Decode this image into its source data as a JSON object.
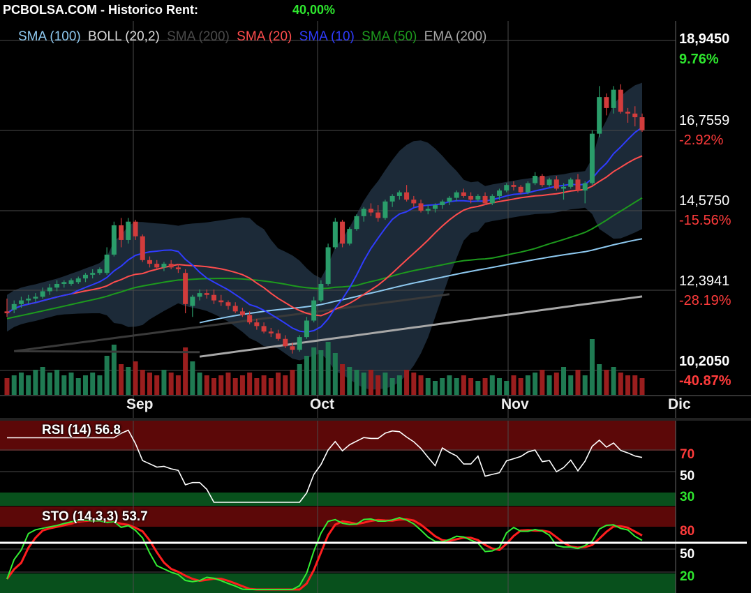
{
  "header": {
    "title": "PCBOLSA.COM - Historico  Rent:",
    "rent": "40,00%"
  },
  "legend": [
    {
      "label": "SMA (100)",
      "color": "#8ec9f0"
    },
    {
      "label": "BOLL (20,2)",
      "color": "#dcdcdc"
    },
    {
      "label": "SMA (200)",
      "color": "#4a4a4a"
    },
    {
      "label": "SMA (20)",
      "color": "#ff4d4d"
    },
    {
      "label": "SMA (10)",
      "color": "#2f3cff"
    },
    {
      "label": "SMA (50)",
      "color": "#1d9a1d"
    },
    {
      "label": "EMA (200)",
      "color": "#a8a8a8"
    }
  ],
  "price_axis": [
    {
      "price": "18,9450",
      "pct": "9.76%",
      "pct_color": "#2ee62e"
    },
    {
      "price": "16,7559",
      "pct": "-2.92%",
      "pct_color": "#ff3b3b"
    },
    {
      "price": "14,5750",
      "pct": "-15.56%",
      "pct_color": "#ff3b3b"
    },
    {
      "price": "12,3941",
      "pct": "-28.19%",
      "pct_color": "#ff3b3b"
    },
    {
      "price": "10,2050",
      "pct": "-40.87%",
      "pct_color": "#ff3b3b"
    }
  ],
  "months": [
    "Sep",
    "Oct",
    "Nov",
    "Dic"
  ],
  "rsi": {
    "title": "RSI (14) 56.8",
    "levels": [
      "70",
      "50",
      "30"
    ]
  },
  "sto": {
    "title": "STO (14,3,3) 53.7",
    "levels": [
      "80",
      "50",
      "20"
    ]
  },
  "colors": {
    "up": "#2a9d6a",
    "down": "#d23c3c",
    "boll_fill": "#1c2a38",
    "rsi_over": "#5c0808",
    "rsi_under": "#08501c",
    "grid": "#4a4a4a"
  },
  "chart_data": {
    "type": "candlestick",
    "ylim": [
      10.205,
      18.945
    ],
    "candles": [
      [
        11.55,
        11.9,
        11.4,
        11.5
      ],
      [
        11.6,
        11.85,
        11.5,
        11.75
      ],
      [
        11.75,
        11.95,
        11.65,
        11.85
      ],
      [
        11.85,
        12.0,
        11.75,
        11.9
      ],
      [
        11.9,
        12.05,
        11.8,
        11.95
      ],
      [
        11.95,
        12.2,
        11.9,
        12.1
      ],
      [
        12.1,
        12.3,
        12.0,
        12.2
      ],
      [
        12.2,
        12.4,
        12.1,
        12.3
      ],
      [
        12.3,
        12.4,
        12.2,
        12.35
      ],
      [
        12.3,
        12.45,
        12.25,
        12.4
      ],
      [
        12.35,
        12.5,
        12.3,
        12.45
      ],
      [
        12.45,
        12.6,
        12.35,
        12.55
      ],
      [
        12.55,
        12.7,
        12.45,
        12.6
      ],
      [
        12.6,
        12.75,
        12.55,
        12.7
      ],
      [
        12.6,
        13.3,
        12.55,
        13.1
      ],
      [
        13.1,
        14.0,
        13.05,
        13.9
      ],
      [
        13.9,
        14.1,
        13.3,
        13.5
      ],
      [
        13.5,
        14.1,
        13.4,
        14.0
      ],
      [
        14.0,
        14.05,
        13.5,
        13.6
      ],
      [
        13.6,
        13.65,
        12.9,
        12.95
      ],
      [
        12.95,
        13.05,
        12.75,
        12.85
      ],
      [
        12.85,
        12.95,
        12.7,
        12.75
      ],
      [
        12.75,
        12.9,
        12.65,
        12.85
      ],
      [
        12.85,
        12.95,
        12.7,
        12.75
      ],
      [
        12.75,
        12.85,
        12.6,
        12.7
      ],
      [
        12.6,
        12.7,
        11.5,
        11.75
      ],
      [
        11.7,
        12.0,
        11.4,
        11.95
      ],
      [
        11.95,
        12.15,
        11.85,
        12.05
      ],
      [
        12.05,
        12.15,
        11.9,
        12.0
      ],
      [
        12.0,
        12.15,
        11.75,
        11.85
      ],
      [
        11.85,
        12.0,
        11.7,
        11.8
      ],
      [
        11.8,
        11.85,
        11.6,
        11.7
      ],
      [
        11.7,
        11.8,
        11.5,
        11.55
      ],
      [
        11.55,
        11.65,
        11.4,
        11.45
      ],
      [
        11.45,
        11.55,
        11.2,
        11.25
      ],
      [
        11.25,
        11.35,
        11.05,
        11.15
      ],
      [
        11.15,
        11.25,
        10.95,
        11.0
      ],
      [
        11.0,
        11.1,
        10.85,
        10.95
      ],
      [
        10.95,
        11.05,
        10.75,
        10.8
      ],
      [
        10.8,
        10.9,
        10.55,
        10.6
      ],
      [
        10.6,
        10.7,
        10.4,
        10.5
      ],
      [
        10.5,
        10.9,
        10.45,
        10.85
      ],
      [
        10.85,
        11.4,
        10.8,
        11.3
      ],
      [
        11.3,
        11.95,
        11.25,
        11.85
      ],
      [
        11.85,
        12.4,
        11.8,
        12.3
      ],
      [
        12.3,
        13.4,
        12.25,
        13.3
      ],
      [
        13.3,
        14.1,
        13.25,
        14.0
      ],
      [
        14.0,
        14.05,
        13.3,
        13.4
      ],
      [
        13.4,
        13.85,
        13.35,
        13.8
      ],
      [
        13.8,
        14.2,
        13.75,
        14.15
      ],
      [
        14.15,
        14.4,
        14.0,
        14.35
      ],
      [
        14.35,
        14.5,
        14.15,
        14.25
      ],
      [
        14.25,
        14.45,
        14.0,
        14.1
      ],
      [
        14.1,
        14.6,
        14.05,
        14.55
      ],
      [
        14.55,
        14.75,
        14.4,
        14.7
      ],
      [
        14.7,
        14.85,
        14.6,
        14.8
      ],
      [
        14.8,
        15.0,
        14.55,
        14.6
      ],
      [
        14.6,
        14.7,
        14.4,
        14.5
      ],
      [
        14.5,
        14.6,
        14.25,
        14.3
      ],
      [
        14.3,
        14.45,
        14.2,
        14.35
      ],
      [
        14.35,
        14.5,
        14.25,
        14.45
      ],
      [
        14.45,
        14.6,
        14.35,
        14.55
      ],
      [
        14.55,
        14.7,
        14.45,
        14.65
      ],
      [
        14.65,
        14.85,
        14.55,
        14.8
      ],
      [
        14.8,
        14.9,
        14.65,
        14.7
      ],
      [
        14.7,
        14.8,
        14.5,
        14.6
      ],
      [
        14.6,
        14.75,
        14.55,
        14.7
      ],
      [
        14.7,
        14.8,
        14.45,
        14.5
      ],
      [
        14.5,
        14.75,
        14.45,
        14.7
      ],
      [
        14.7,
        14.9,
        14.6,
        14.85
      ],
      [
        14.85,
        15.05,
        14.8,
        15.0
      ],
      [
        15.0,
        15.1,
        14.85,
        14.95
      ],
      [
        14.95,
        15.0,
        14.75,
        14.8
      ],
      [
        14.8,
        15.1,
        14.75,
        15.05
      ],
      [
        15.05,
        15.35,
        15.0,
        15.25
      ],
      [
        15.25,
        15.3,
        14.95,
        15.0
      ],
      [
        15.0,
        15.2,
        14.95,
        15.15
      ],
      [
        15.15,
        15.25,
        14.85,
        14.9
      ],
      [
        14.9,
        15.05,
        14.6,
        14.95
      ],
      [
        14.95,
        15.2,
        14.9,
        15.15
      ],
      [
        15.15,
        15.3,
        14.8,
        14.85
      ],
      [
        14.85,
        15.1,
        14.5,
        15.05
      ],
      [
        15.05,
        16.5,
        15.0,
        16.4
      ],
      [
        16.4,
        17.7,
        16.3,
        17.4
      ],
      [
        17.4,
        17.5,
        16.9,
        17.1
      ],
      [
        17.1,
        17.7,
        16.95,
        17.6
      ],
      [
        17.6,
        17.75,
        16.95,
        17.0
      ],
      [
        17.0,
        17.1,
        16.7,
        16.95
      ],
      [
        16.95,
        17.15,
        16.6,
        16.85
      ],
      [
        16.85,
        16.95,
        16.45,
        16.5
      ]
    ],
    "volume": [
      0.3,
      0.35,
      0.4,
      0.35,
      0.45,
      0.5,
      0.4,
      0.45,
      0.35,
      0.4,
      0.3,
      0.35,
      0.4,
      0.35,
      0.7,
      0.9,
      0.55,
      0.5,
      0.6,
      0.45,
      0.4,
      0.35,
      0.45,
      0.4,
      0.35,
      0.85,
      0.6,
      0.4,
      0.35,
      0.3,
      0.35,
      0.4,
      0.3,
      0.35,
      0.4,
      0.3,
      0.35,
      0.3,
      0.4,
      0.35,
      0.45,
      0.55,
      0.7,
      0.85,
      0.8,
      0.95,
      0.75,
      0.55,
      0.5,
      0.45,
      0.4,
      0.45,
      0.35,
      0.4,
      0.3,
      0.35,
      0.45,
      0.4,
      0.35,
      0.3,
      0.25,
      0.3,
      0.35,
      0.3,
      0.35,
      0.3,
      0.25,
      0.3,
      0.35,
      0.3,
      0.25,
      0.35,
      0.3,
      0.35,
      0.4,
      0.45,
      0.35,
      0.4,
      0.5,
      0.35,
      0.45,
      0.35,
      1.0,
      0.55,
      0.45,
      0.5,
      0.4,
      0.35,
      0.35,
      0.3
    ]
  }
}
